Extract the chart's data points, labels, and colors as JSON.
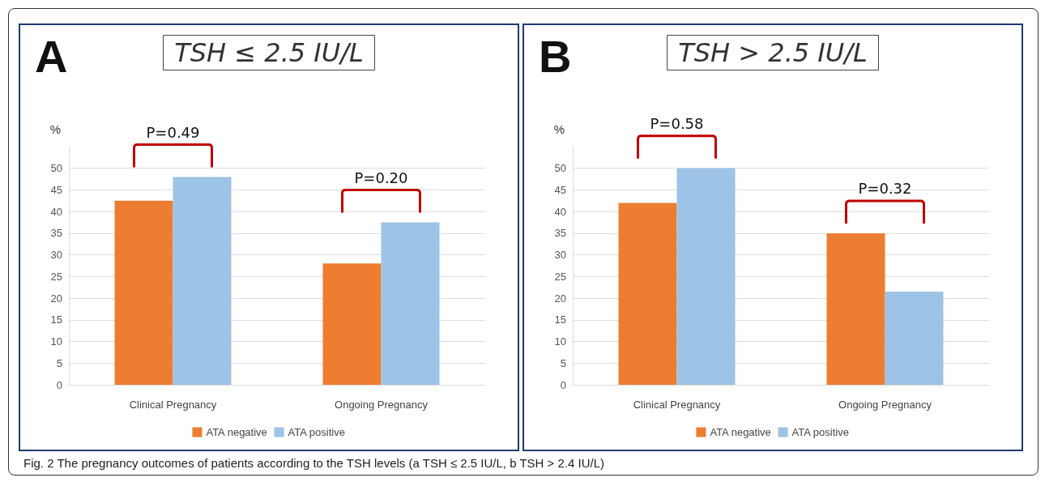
{
  "chart_data": [
    {
      "type": "bar",
      "title": "TSH ≤ 2.5 IU/L",
      "ylabel": "%",
      "categories": [
        "Clinical Pregnancy",
        "Ongoing Pregnancy"
      ],
      "series": [
        {
          "name": "ATA negative",
          "color": "#ed7d31",
          "values": [
            42.5,
            28
          ]
        },
        {
          "name": "ATA positive",
          "color": "#9dc3e6",
          "values": [
            48,
            37.5
          ]
        }
      ],
      "ylim": [
        0,
        55
      ],
      "yticks": [
        0,
        5,
        10,
        15,
        20,
        25,
        30,
        35,
        40,
        45,
        50
      ],
      "grid": "y",
      "legend": "bottom",
      "annotations": [
        "A",
        "P=0.49",
        "P=0.20",
        "Fig. 2 The pregnancy outcomes of patients according to the TSH levels (a TSH ≤ 2.5 IU/L, b TSH > 2.4 IU/L)"
      ]
    },
    {
      "type": "bar",
      "title": "TSH > 2.5 IU/L",
      "ylabel": "%",
      "categories": [
        "Clinical Pregnancy",
        "Ongoing Pregnancy"
      ],
      "series": [
        {
          "name": "ATA negative",
          "color": "#ed7d31",
          "values": [
            42,
            35
          ]
        },
        {
          "name": "ATA positive",
          "color": "#9dc3e6",
          "values": [
            50,
            21.5
          ]
        }
      ],
      "ylim": [
        0,
        55
      ],
      "yticks": [
        0,
        5,
        10,
        15,
        20,
        25,
        30,
        35,
        40,
        45,
        50
      ],
      "grid": "y",
      "legend": "bottom",
      "annotations": [
        "B",
        "P=0.58",
        "P=0.32"
      ]
    }
  ]
}
